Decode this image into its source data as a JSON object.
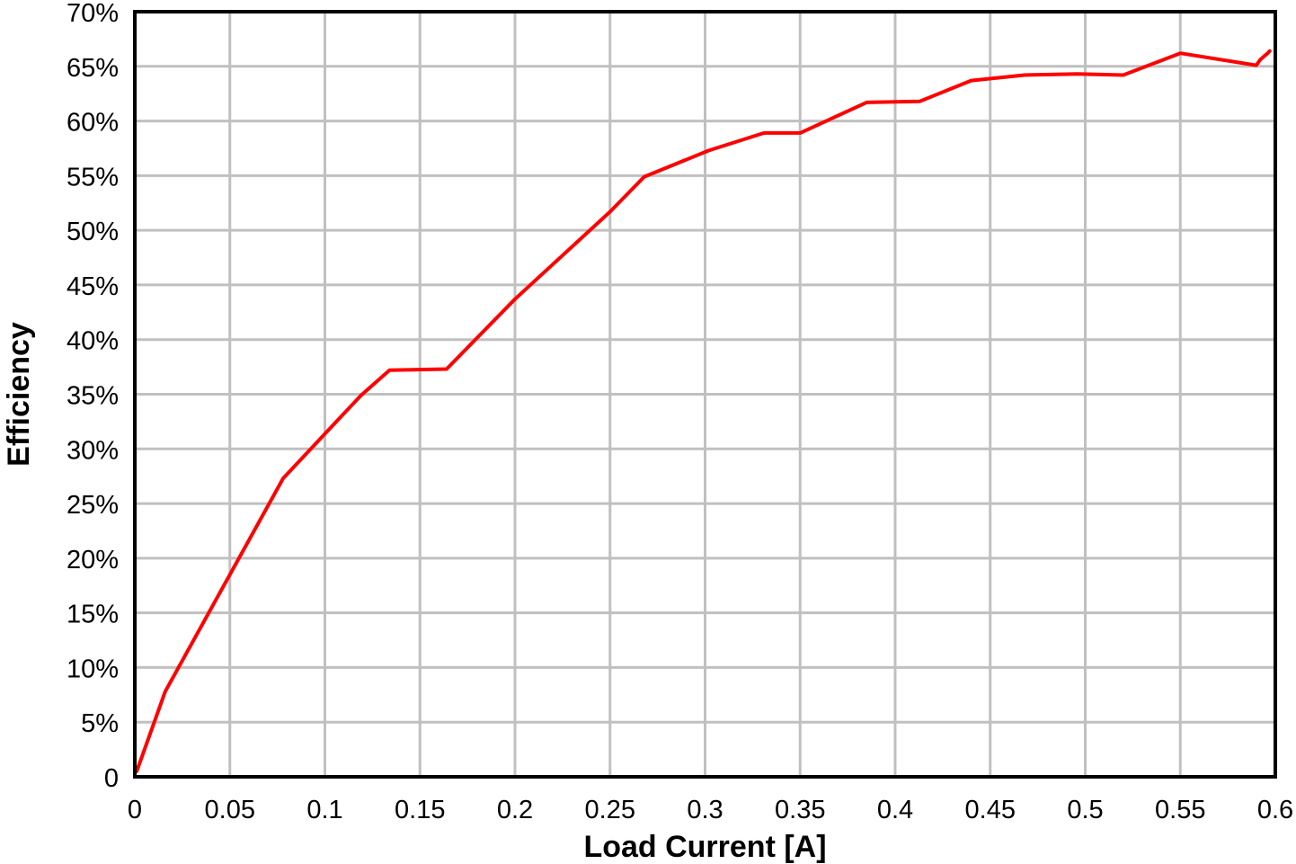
{
  "chart_data": {
    "type": "line",
    "xlabel": "Load Current [A]",
    "ylabel": "Efficiency",
    "xlim": [
      0,
      0.6
    ],
    "ylim": [
      0,
      70
    ],
    "x_ticks": [
      {
        "value": 0,
        "label": "0"
      },
      {
        "value": 0.05,
        "label": "0.05"
      },
      {
        "value": 0.1,
        "label": "0.1"
      },
      {
        "value": 0.15,
        "label": "0.15"
      },
      {
        "value": 0.2,
        "label": "0.2"
      },
      {
        "value": 0.25,
        "label": "0.25"
      },
      {
        "value": 0.3,
        "label": "0.3"
      },
      {
        "value": 0.35,
        "label": "0.35"
      },
      {
        "value": 0.4,
        "label": "0.4"
      },
      {
        "value": 0.45,
        "label": "0.45"
      },
      {
        "value": 0.5,
        "label": "0.5"
      },
      {
        "value": 0.55,
        "label": "0.55"
      },
      {
        "value": 0.6,
        "label": "0.6"
      }
    ],
    "y_ticks": [
      {
        "value": 0,
        "label": "0"
      },
      {
        "value": 5,
        "label": "5%"
      },
      {
        "value": 10,
        "label": "10%"
      },
      {
        "value": 15,
        "label": "15%"
      },
      {
        "value": 20,
        "label": "20%"
      },
      {
        "value": 25,
        "label": "25%"
      },
      {
        "value": 30,
        "label": "30%"
      },
      {
        "value": 35,
        "label": "35%"
      },
      {
        "value": 40,
        "label": "40%"
      },
      {
        "value": 45,
        "label": "45%"
      },
      {
        "value": 50,
        "label": "50%"
      },
      {
        "value": 55,
        "label": "55%"
      },
      {
        "value": 60,
        "label": "60%"
      },
      {
        "value": 65,
        "label": "65%"
      },
      {
        "value": 70,
        "label": "70%"
      }
    ],
    "grid": true,
    "series": [
      {
        "color": "#ff0000",
        "x": [
          0.001,
          0.016,
          0.078,
          0.119,
          0.134,
          0.164,
          0.2,
          0.25,
          0.268,
          0.302,
          0.331,
          0.35,
          0.385,
          0.413,
          0.44,
          0.468,
          0.496,
          0.52,
          0.55,
          0.59,
          0.592,
          0.594,
          0.596,
          0.597
        ],
        "y": [
          0.5,
          7.8,
          27.3,
          34.9,
          37.2,
          37.3,
          43.7,
          51.7,
          54.9,
          57.3,
          58.9,
          58.9,
          61.7,
          61.8,
          63.7,
          64.2,
          64.3,
          64.2,
          66.2,
          65.1,
          65.6,
          65.9,
          66.2,
          66.4
        ]
      }
    ]
  }
}
